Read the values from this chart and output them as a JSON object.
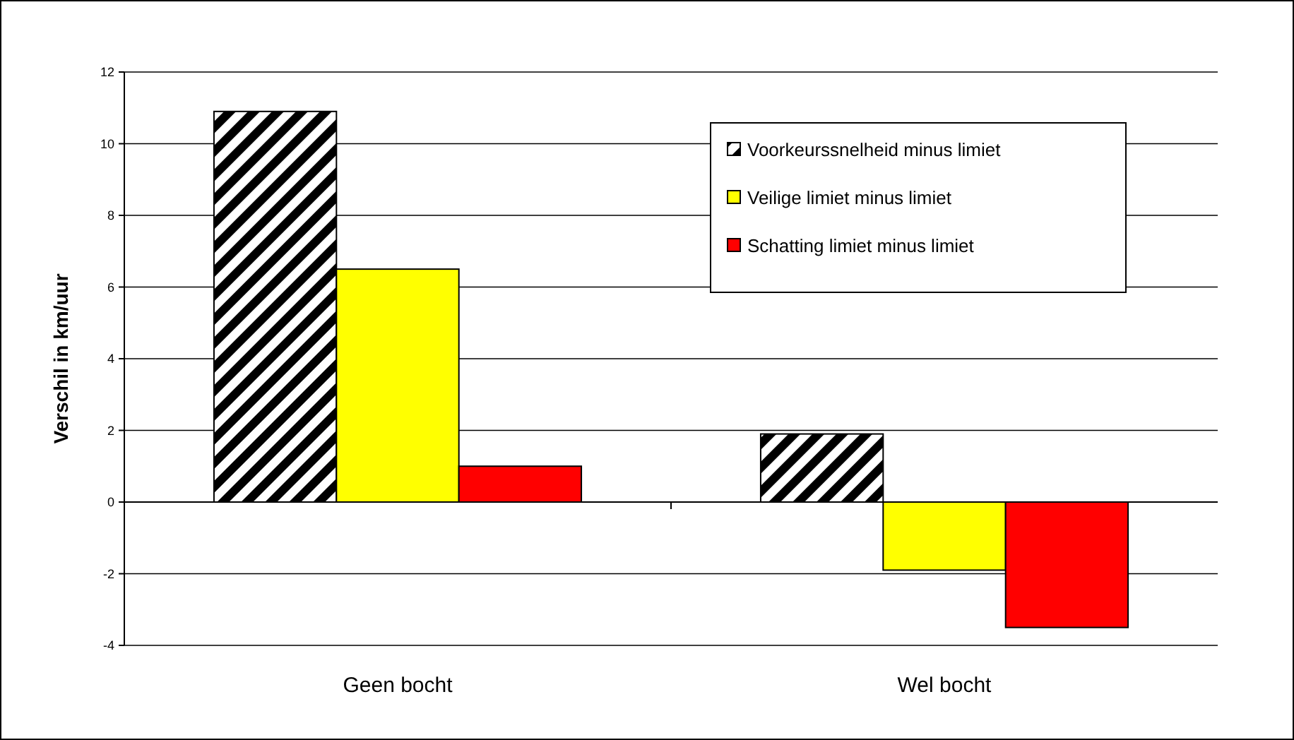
{
  "chart_data": {
    "type": "bar",
    "ylabel": "Verschil in km/uur",
    "categories": [
      "Geen bocht",
      "Wel bocht"
    ],
    "series": [
      {
        "name": "Voorkeurssnelheid minus limiet",
        "color": "#000000",
        "values": [
          10.9,
          1.9
        ]
      },
      {
        "name": "Veilige limiet minus limiet",
        "color": "#ffff00",
        "values": [
          6.5,
          -1.9
        ]
      },
      {
        "name": "Schatting limiet minus limiet",
        "color": "#ff0000",
        "values": [
          1.0,
          -3.5
        ]
      }
    ],
    "ylim": [
      -4,
      12
    ],
    "yticks": [
      -4,
      -2,
      0,
      2,
      4,
      6,
      8,
      10,
      12
    ],
    "grid": "y",
    "legend": "top right"
  }
}
